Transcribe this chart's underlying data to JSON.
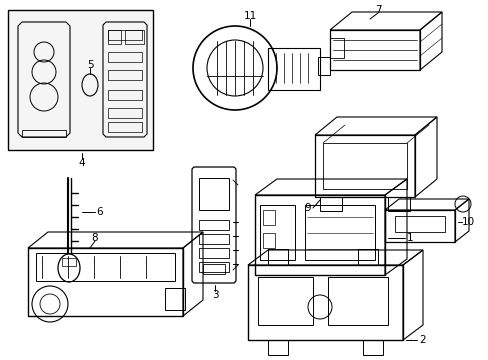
{
  "background_color": "#ffffff",
  "line_color": "#000000",
  "fig_width": 4.89,
  "fig_height": 3.6,
  "dpi": 100,
  "gray_fill": "#e8e8e8",
  "light_gray": "#f0f0f0"
}
